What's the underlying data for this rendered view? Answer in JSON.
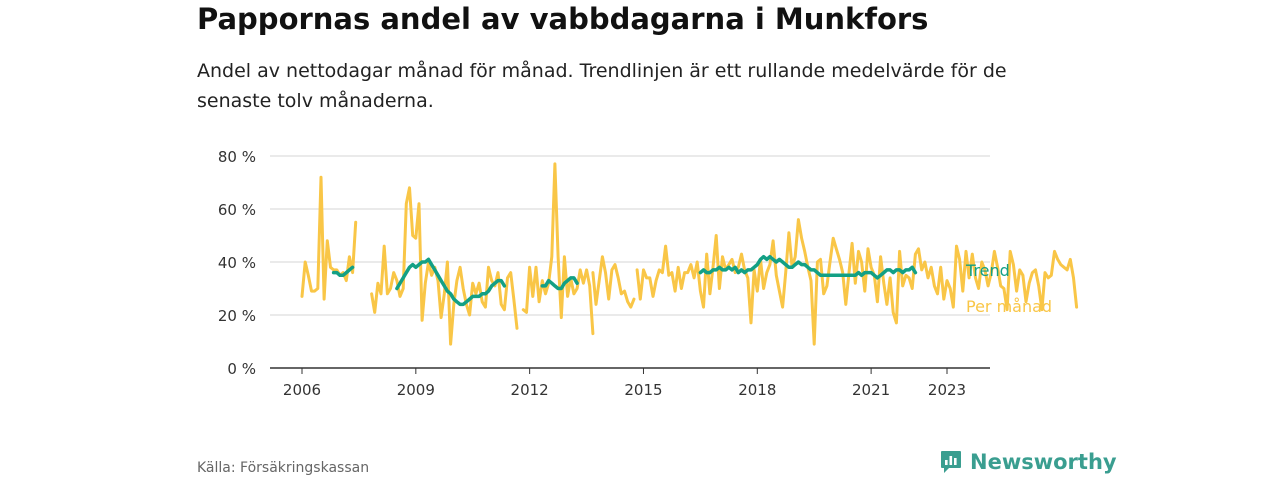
{
  "header": {
    "title": "Pappornas andel av vabbdagarna i Munkfors",
    "subtitle": "Andel av nettodagar månad för månad. Trendlinjen är ett rullande medelvärde för de senaste tolv månaderna."
  },
  "footer": {
    "source": "Källa: Försäkringskassan",
    "brand": "Newsworthy"
  },
  "colors": {
    "monthly": "#f9c647",
    "trend": "#13a085",
    "grid": "#d6d6d6",
    "axis": "#333333",
    "brand": "#3a9e90"
  },
  "icons": {
    "brand_logo": "newsworthy-logo-icon"
  },
  "chart_data": {
    "type": "line",
    "title": "Pappornas andel av vabbdagarna i Munkfors",
    "xlabel": "",
    "ylabel": "",
    "xlim": [
      2005.5,
      2024.0
    ],
    "ylim": [
      0,
      80
    ],
    "y_ticks": [
      {
        "value": 0,
        "label": "0 %"
      },
      {
        "value": 20,
        "label": "20 %"
      },
      {
        "value": 40,
        "label": "40 %"
      },
      {
        "value": 60,
        "label": "60 %"
      },
      {
        "value": 80,
        "label": "80 %"
      }
    ],
    "x_ticks": [
      {
        "value": 2006,
        "label": "2006"
      },
      {
        "value": 2009,
        "label": "2009"
      },
      {
        "value": 2012,
        "label": "2012"
      },
      {
        "value": 2015,
        "label": "2015"
      },
      {
        "value": 2018,
        "label": "2018"
      },
      {
        "value": 2021,
        "label": "2021"
      },
      {
        "value": 2023,
        "label": "2023"
      }
    ],
    "grid": true,
    "series": [
      {
        "name": "Per månad",
        "segments": [
          {
            "x_start": 2006.0,
            "x_step": 0.0833333,
            "values": [
              27,
              40,
              35,
              29,
              29,
              30,
              72,
              26,
              48,
              38,
              37,
              37,
              35,
              36,
              33,
              42,
              36,
              55
            ]
          },
          {
            "x_start": 2007.8333,
            "x_step": 0.0833333,
            "values": [
              28,
              21,
              32,
              28,
              46,
              28,
              30,
              36,
              33,
              27,
              30,
              62,
              68,
              50,
              49,
              62,
              18,
              32,
              40,
              35,
              38,
              33,
              19,
              28,
              40,
              9,
              24,
              33,
              38,
              30,
              24,
              20,
              32,
              28,
              32,
              25,
              23,
              38,
              33,
              31,
              36,
              24,
              22,
              34,
              36,
              26,
              15
            ]
          },
          {
            "x_start": 2011.8333,
            "x_step": 0.0833333,
            "values": [
              22,
              21,
              38,
              27,
              38,
              25,
              33,
              28,
              32,
              42,
              77,
              42,
              19,
              42,
              27,
              34,
              28,
              30,
              37,
              32,
              37,
              31,
              13
            ]
          },
          {
            "x_start": 2013.6667,
            "x_step": 0.0833333,
            "values": [
              36,
              24,
              33,
              42,
              36,
              26,
              37,
              39,
              34,
              28,
              29,
              25,
              23,
              26
            ]
          },
          {
            "x_start": 2014.8333,
            "x_step": 0.0833333,
            "values": [
              37,
              26,
              37,
              34,
              34,
              27,
              33,
              37,
              36,
              46,
              35,
              36,
              29,
              38,
              30,
              36,
              36,
              39,
              34,
              40,
              29,
              23,
              43,
              28,
              38,
              50,
              30,
              42,
              37,
              39,
              41,
              36,
              38,
              43,
              37,
              34,
              17,
              37,
              29,
              41,
              30,
              36,
              39,
              48,
              35,
              29,
              23,
              36,
              51,
              38,
              42,
              56,
              49,
              44,
              38,
              33,
              9,
              40,
              41,
              28,
              31,
              40,
              49,
              45,
              41,
              36,
              24,
              36,
              47,
              32,
              44,
              40,
              29,
              45,
              38,
              35,
              25,
              42,
              32,
              24,
              34,
              21,
              17,
              44,
              31,
              35,
              34,
              30,
              43,
              45,
              37,
              40,
              34,
              38,
              31,
              28,
              38,
              26,
              33,
              30,
              23,
              46,
              41,
              29,
              44,
              34,
              43,
              34,
              30,
              40,
              37,
              31,
              36,
              44,
              38,
              31,
              30,
              22,
              44,
              39,
              29,
              37,
              35,
              25,
              32,
              36,
              37,
              31,
              22,
              36,
              34,
              35,
              44,
              41,
              39,
              38,
              37,
              41,
              34,
              23
            ]
          }
        ]
      },
      {
        "name": "Trend",
        "segments": [
          {
            "x_start": 2006.8333,
            "x_step": 0.0833333,
            "values": [
              36,
              36,
              35,
              35,
              36,
              37,
              38
            ]
          },
          {
            "x_start": 2008.5,
            "x_step": 0.0833333,
            "values": [
              30,
              32,
              34,
              36,
              38,
              39,
              38,
              39,
              40,
              40,
              41,
              39,
              37,
              35,
              33,
              31,
              29,
              28,
              26,
              25,
              24,
              24,
              25,
              26,
              27,
              27,
              27,
              28,
              28,
              29,
              31,
              32,
              33,
              33,
              31
            ]
          },
          {
            "x_start": 2012.3333,
            "x_step": 0.0833333,
            "values": [
              31,
              31,
              33,
              32,
              31,
              30,
              30,
              32,
              33,
              34,
              34,
              32
            ]
          },
          {
            "x_start": 2016.5,
            "x_step": 0.0833333,
            "values": [
              36,
              37,
              36,
              36,
              37,
              37,
              38,
              37,
              37,
              38,
              37,
              38,
              36,
              37,
              36,
              37,
              37,
              38,
              39,
              41,
              42,
              41,
              42,
              41,
              40,
              41,
              40,
              39,
              38,
              38,
              39,
              40,
              39,
              39,
              38,
              37,
              37,
              36,
              35,
              35,
              35,
              35,
              35,
              35,
              35,
              35,
              35,
              35,
              35,
              35,
              36,
              35,
              36,
              36,
              36,
              35,
              34,
              35,
              36,
              37,
              37,
              36,
              37,
              37,
              36,
              37,
              37,
              38,
              36
            ]
          }
        ]
      }
    ]
  }
}
